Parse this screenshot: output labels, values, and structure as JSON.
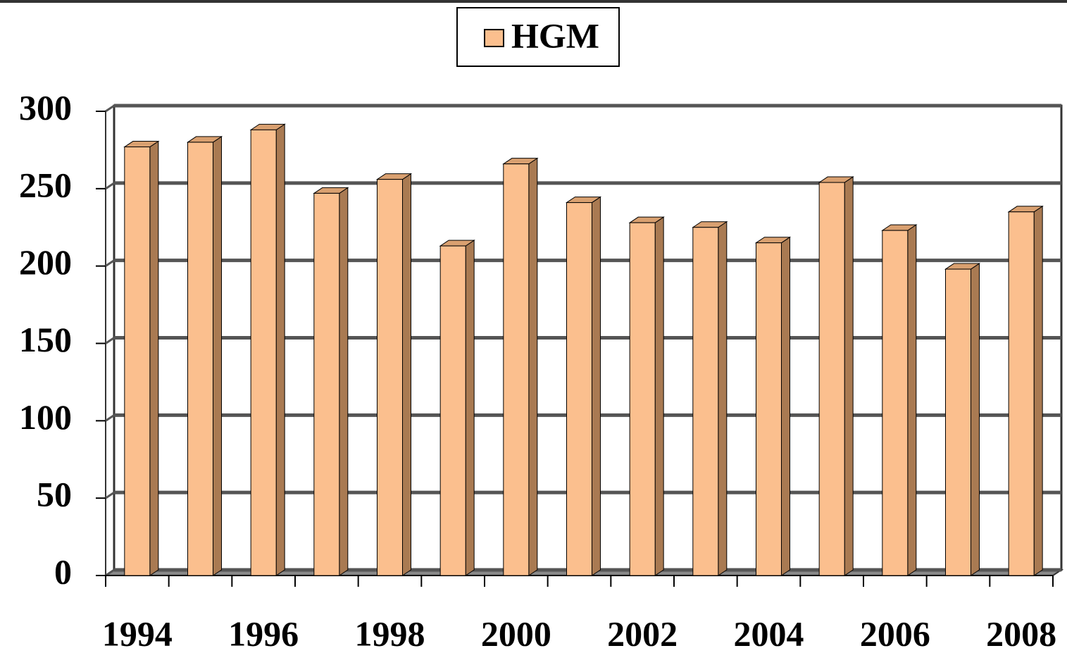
{
  "chart_data": {
    "type": "bar3d",
    "categories": [
      "1994",
      null,
      "1996",
      null,
      "1998",
      null,
      "2000",
      null,
      "2002",
      null,
      "2004",
      null,
      "2006",
      null,
      "2008"
    ],
    "series": [
      {
        "name": "HGM",
        "color": "#fbbf8e",
        "values": [
          277,
          280,
          288,
          247,
          256,
          213,
          266,
          241,
          228,
          225,
          215,
          254,
          223,
          198,
          235
        ]
      }
    ],
    "ylim": [
      0,
      300
    ],
    "yticks": [
      0,
      50,
      100,
      150,
      200,
      250,
      300
    ],
    "grid": true,
    "legend": "top"
  }
}
